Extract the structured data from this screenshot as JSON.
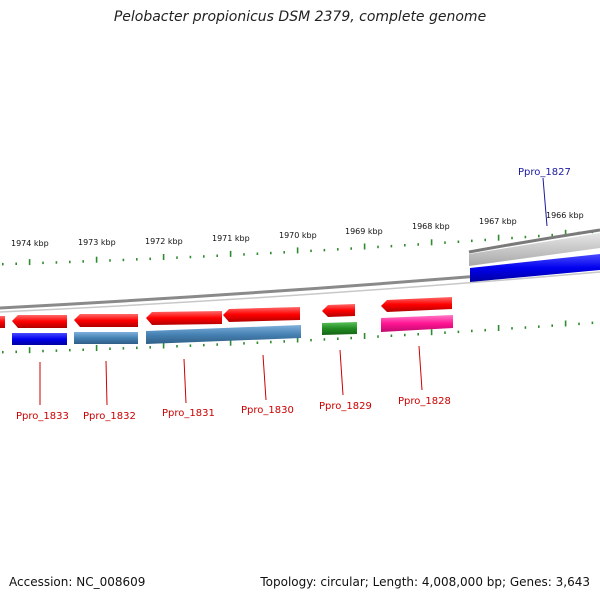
{
  "title": "Pelobacter propionicus DSM 2379, complete genome",
  "footer": {
    "accession": "Accession: NC_008609",
    "summary": "Topology: circular; Length: 4,008,000 bp; Genes: 3,643"
  },
  "colors": {
    "backbone": "#8a8a8a",
    "cds_forward": "#ff0000",
    "tick_green": "#2e8b2e",
    "label_red": "#cc0000",
    "label_blue": "#1a1aa0"
  },
  "ticks": [
    {
      "label": "1974 kbp"
    },
    {
      "label": "1973 kbp"
    },
    {
      "label": "1972 kbp"
    },
    {
      "label": "1971 kbp"
    },
    {
      "label": "1970 kbp"
    },
    {
      "label": "1969 kbp"
    },
    {
      "label": "1968 kbp"
    },
    {
      "label": "1967 kbp"
    },
    {
      "label": "1966 kbp"
    }
  ],
  "genes": [
    {
      "name": "Ppro_1833",
      "color": "#cc0000"
    },
    {
      "name": "Ppro_1832",
      "color": "#cc0000"
    },
    {
      "name": "Ppro_1831",
      "color": "#cc0000"
    },
    {
      "name": "Ppro_1830",
      "color": "#cc0000"
    },
    {
      "name": "Ppro_1829",
      "color": "#cc0000"
    },
    {
      "name": "Ppro_1828",
      "color": "#cc0000"
    },
    {
      "name": "Ppro_1827",
      "color": "#1a1aa0"
    }
  ]
}
